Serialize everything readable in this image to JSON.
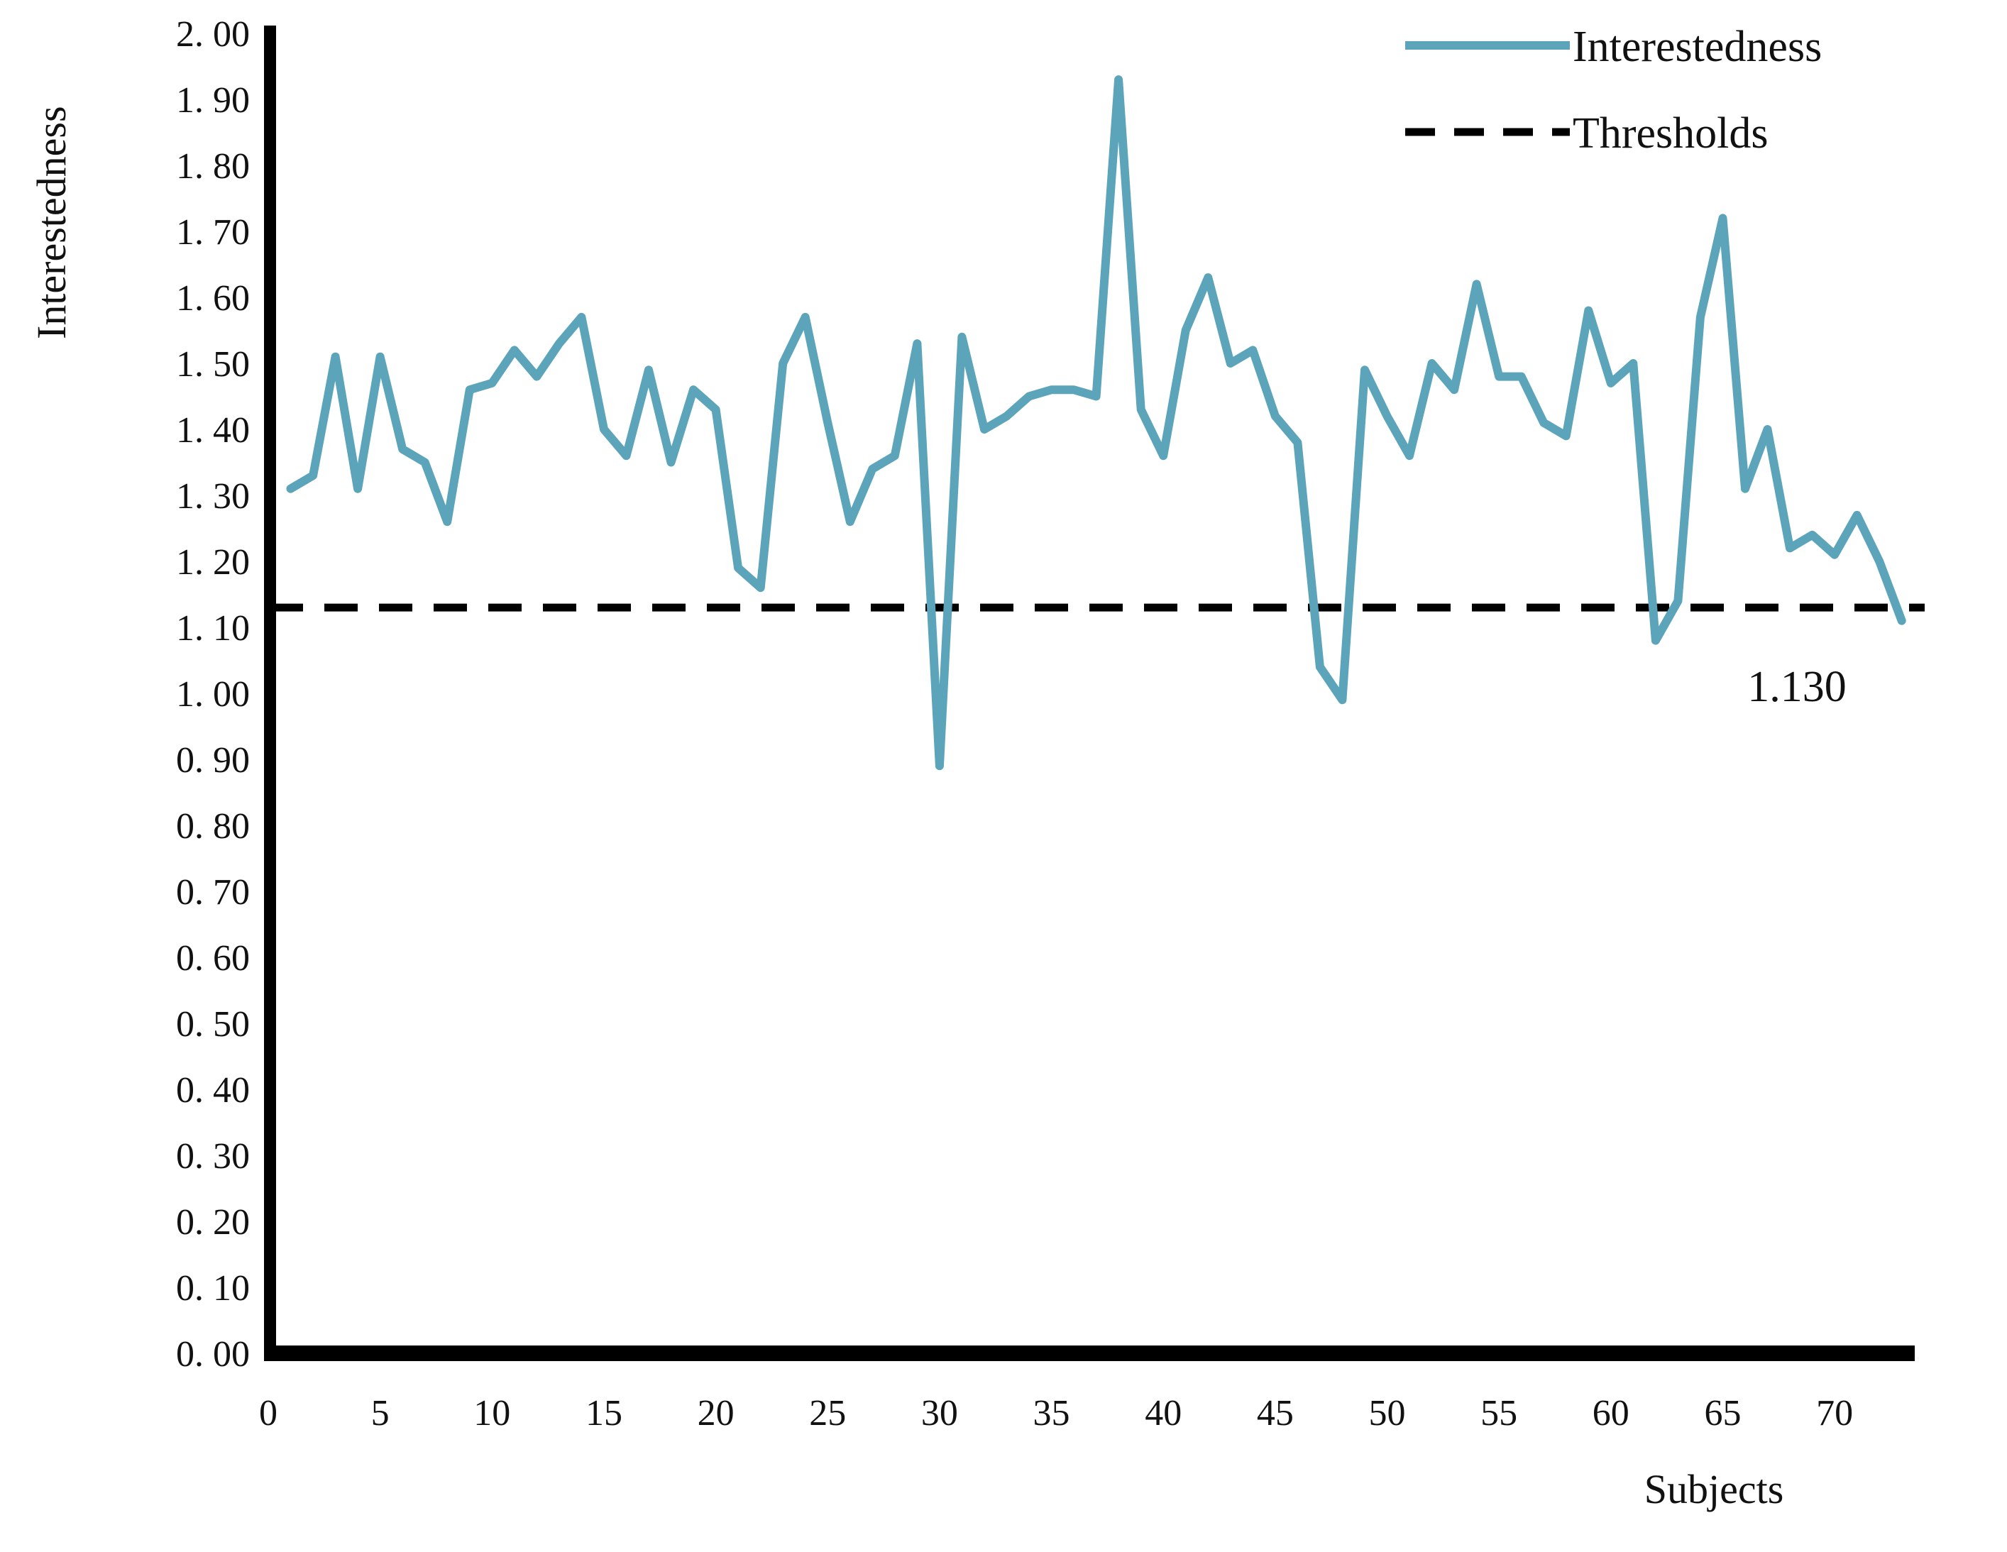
{
  "chart_data": {
    "type": "line",
    "title": "",
    "xlabel": "Subjects",
    "ylabel": "Interestedness",
    "x_range": [
      0,
      73
    ],
    "y_range": [
      0.0,
      2.0
    ],
    "grid": false,
    "legend_position": "top-right",
    "x_ticks": [
      "0",
      "5",
      "10",
      "15",
      "20",
      "25",
      "30",
      "35",
      "40",
      "45",
      "50",
      "55",
      "60",
      "65",
      "70"
    ],
    "x_tick_values": [
      0,
      5,
      10,
      15,
      20,
      25,
      30,
      35,
      40,
      45,
      50,
      55,
      60,
      65,
      70
    ],
    "y_ticks": [
      "2. 00",
      "1. 90",
      "1. 80",
      "1. 70",
      "1. 60",
      "1. 50",
      "1. 40",
      "1. 30",
      "1. 20",
      "1. 10",
      "1. 00",
      "0. 90",
      "0. 80",
      "0. 70",
      "0. 60",
      "0. 50",
      "0. 40",
      "0. 30",
      "0. 20",
      "0. 10",
      "0. 00"
    ],
    "y_tick_values": [
      2.0,
      1.9,
      1.8,
      1.7,
      1.6,
      1.5,
      1.4,
      1.3,
      1.2,
      1.1,
      1.0,
      0.9,
      0.8,
      0.7,
      0.6,
      0.5,
      0.4,
      0.3,
      0.2,
      0.1,
      0.0
    ],
    "threshold": 1.13,
    "threshold_label": "1.130",
    "series": [
      {
        "name": "Interestedness",
        "color": "#5ba4ba",
        "x_start": 1,
        "values": [
          1.31,
          1.33,
          1.51,
          1.31,
          1.51,
          1.37,
          1.35,
          1.26,
          1.46,
          1.47,
          1.52,
          1.48,
          1.53,
          1.57,
          1.4,
          1.36,
          1.49,
          1.35,
          1.46,
          1.43,
          1.19,
          1.16,
          1.5,
          1.57,
          1.41,
          1.26,
          1.34,
          1.36,
          1.53,
          0.89,
          1.54,
          1.4,
          1.42,
          1.45,
          1.46,
          1.46,
          1.45,
          1.93,
          1.43,
          1.36,
          1.55,
          1.63,
          1.5,
          1.52,
          1.42,
          1.38,
          1.04,
          0.99,
          1.49,
          1.42,
          1.36,
          1.5,
          1.46,
          1.62,
          1.48,
          1.48,
          1.41,
          1.39,
          1.58,
          1.47,
          1.5,
          1.08,
          1.14,
          1.57,
          1.72,
          1.31,
          1.4,
          1.22,
          1.24,
          1.21,
          1.27,
          1.2,
          1.11
        ]
      },
      {
        "name": "Thresholds",
        "color": "#000000",
        "style": "dashed",
        "value": 1.13
      }
    ]
  },
  "legend": {
    "series_label": "Interestedness",
    "threshold_label": "Thresholds"
  },
  "colors": {
    "line": "#5ba4ba",
    "threshold": "#000000",
    "axis": "#000000",
    "text": "#111111"
  }
}
